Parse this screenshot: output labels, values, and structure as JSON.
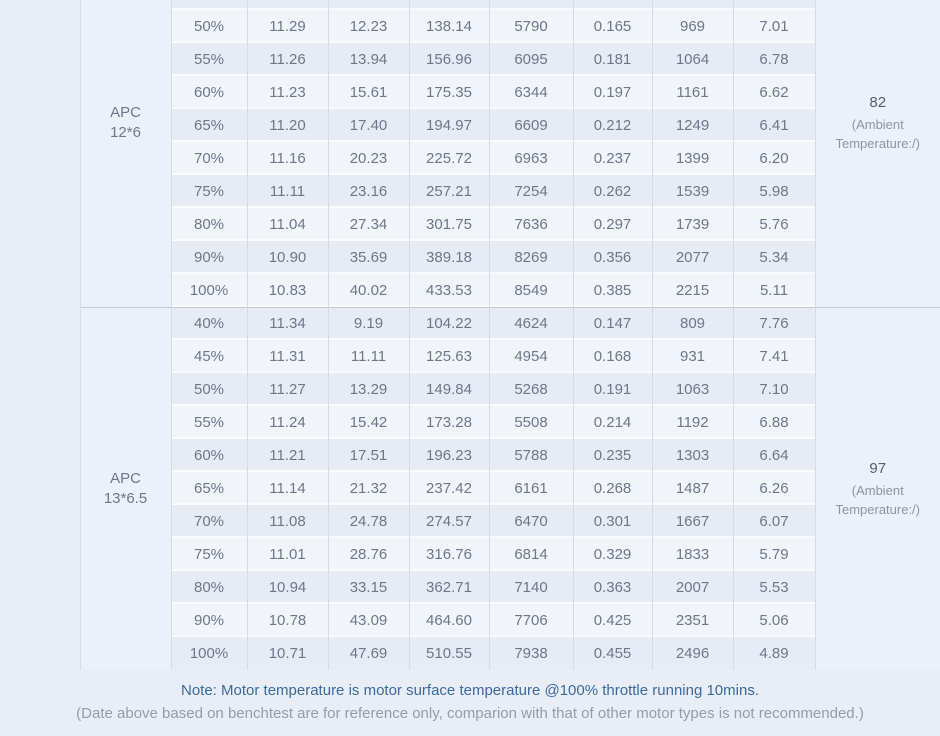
{
  "table": {
    "sections": [
      {
        "propeller": "APC 12*6",
        "motor_temperature": "82",
        "ambient_note": "(Ambient Temperature:/)",
        "rows": [
          [
            "50%",
            "11.29",
            "12.23",
            "138.14",
            "5790",
            "0.165",
            "969",
            "7.01"
          ],
          [
            "55%",
            "11.26",
            "13.94",
            "156.96",
            "6095",
            "0.181",
            "1064",
            "6.78"
          ],
          [
            "60%",
            "11.23",
            "15.61",
            "175.35",
            "6344",
            "0.197",
            "1161",
            "6.62"
          ],
          [
            "65%",
            "11.20",
            "17.40",
            "194.97",
            "6609",
            "0.212",
            "1249",
            "6.41"
          ],
          [
            "70%",
            "11.16",
            "20.23",
            "225.72",
            "6963",
            "0.237",
            "1399",
            "6.20"
          ],
          [
            "75%",
            "11.11",
            "23.16",
            "257.21",
            "7254",
            "0.262",
            "1539",
            "5.98"
          ],
          [
            "80%",
            "11.04",
            "27.34",
            "301.75",
            "7636",
            "0.297",
            "1739",
            "5.76"
          ],
          [
            "90%",
            "10.90",
            "35.69",
            "389.18",
            "8269",
            "0.356",
            "2077",
            "5.34"
          ],
          [
            "100%",
            "10.83",
            "40.02",
            "433.53",
            "8549",
            "0.385",
            "2215",
            "5.11"
          ]
        ]
      },
      {
        "propeller": "APC 13*6.5",
        "motor_temperature": "97",
        "ambient_note": "(Ambient Temperature:/)",
        "rows": [
          [
            "40%",
            "11.34",
            "9.19",
            "104.22",
            "4624",
            "0.147",
            "809",
            "7.76"
          ],
          [
            "45%",
            "11.31",
            "11.11",
            "125.63",
            "4954",
            "0.168",
            "931",
            "7.41"
          ],
          [
            "50%",
            "11.27",
            "13.29",
            "149.84",
            "5268",
            "0.191",
            "1063",
            "7.10"
          ],
          [
            "55%",
            "11.24",
            "15.42",
            "173.28",
            "5508",
            "0.214",
            "1192",
            "6.88"
          ],
          [
            "60%",
            "11.21",
            "17.51",
            "196.23",
            "5788",
            "0.235",
            "1303",
            "6.64"
          ],
          [
            "65%",
            "11.14",
            "21.32",
            "237.42",
            "6161",
            "0.268",
            "1487",
            "6.26"
          ],
          [
            "70%",
            "11.08",
            "24.78",
            "274.57",
            "6470",
            "0.301",
            "1667",
            "6.07"
          ],
          [
            "75%",
            "11.01",
            "28.76",
            "316.76",
            "6814",
            "0.329",
            "1833",
            "5.79"
          ],
          [
            "80%",
            "10.94",
            "33.15",
            "362.71",
            "7140",
            "0.363",
            "2007",
            "5.53"
          ],
          [
            "90%",
            "10.78",
            "43.09",
            "464.60",
            "7706",
            "0.425",
            "2351",
            "5.06"
          ],
          [
            "100%",
            "10.71",
            "47.69",
            "510.55",
            "7938",
            "0.455",
            "2496",
            "4.89"
          ]
        ]
      }
    ]
  },
  "footer": {
    "note_primary": "Note: Motor temperature is motor surface temperature @100% throttle running 10mins.",
    "note_secondary": "(Date above based on benchtest are for reference only, comparion with that of other motor types is not recommended.)"
  },
  "colors": {
    "page_background": "#e9eef6",
    "stripe_dark": "#e7ecf4",
    "stripe_light": "#f1f5fa",
    "merged_cell": "#ecf0f8",
    "grid_line": "#d5dae3",
    "section_divider": "#c4cad4",
    "text_gray": "#6e7687",
    "note_blue": "#3a6a9d",
    "note_gray": "#949ca8"
  }
}
